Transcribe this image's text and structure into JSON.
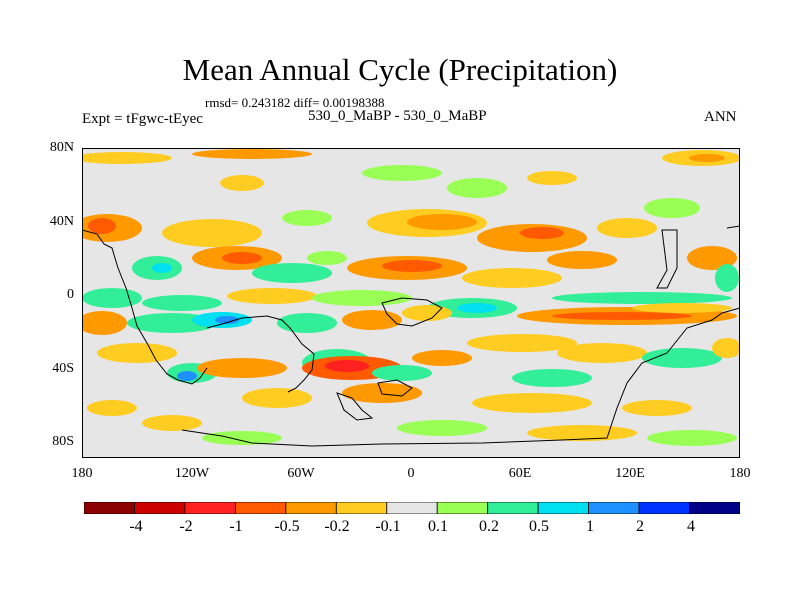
{
  "title": "Mean Annual Cycle (Precipitation)",
  "stats": "rmsd= 0.243182 diff= 0.00198388",
  "expt": "Expt = tFgwc-tEyec",
  "case": "530_0_MaBP - 530_0_MaBP",
  "season": "ANN",
  "y_ticks": [
    "80N",
    "40N",
    "0",
    "40S",
    "80S"
  ],
  "x_ticks": [
    "180",
    "120W",
    "60W",
    "0",
    "60E",
    "120E",
    "180"
  ],
  "colorbar": {
    "labels": [
      "-4",
      "-2",
      "-1",
      "-0.5",
      "-0.2",
      "-0.1",
      "0.1",
      "0.2",
      "0.5",
      "1",
      "2",
      "4"
    ],
    "colors": [
      "#8b0000",
      "#cc0000",
      "#ff2020",
      "#ff5a00",
      "#ff9900",
      "#ffcc22",
      "#e6e6e6",
      "#99ff55",
      "#33ee99",
      "#00e0f0",
      "#1e90ff",
      "#0033ff",
      "#000088"
    ]
  }
}
